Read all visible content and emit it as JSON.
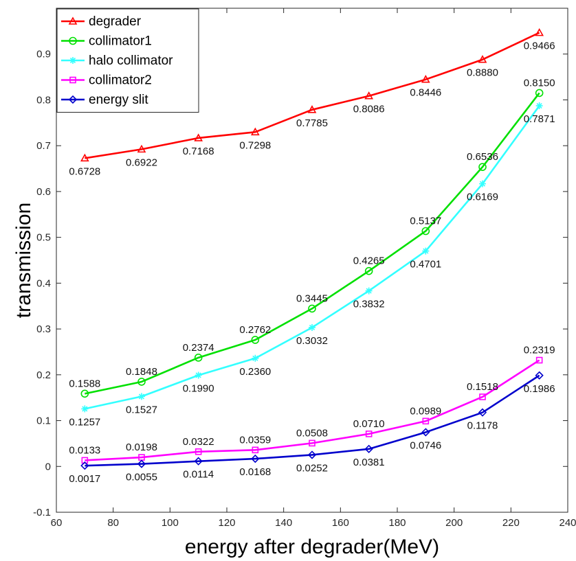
{
  "chart_data": {
    "type": "line",
    "xlabel": "energy after degrader(MeV)",
    "ylabel": "transmission",
    "xlim": [
      60,
      240
    ],
    "ylim": [
      -0.1,
      1.0
    ],
    "xticks": [
      60,
      80,
      100,
      120,
      140,
      160,
      180,
      200,
      220,
      240
    ],
    "yticks": [
      -0.1,
      0,
      0.1,
      0.2,
      0.3,
      0.4,
      0.5,
      0.6,
      0.7,
      0.8,
      0.9
    ],
    "ytick_labels": [
      "-0.1",
      "0",
      "0.1",
      "0.2",
      "0.3",
      "0.4",
      "0.5",
      "0.6",
      "0.7",
      "0.8",
      "0.9"
    ],
    "grid": false,
    "legend_position": "top-left",
    "x": [
      70,
      90,
      110,
      130,
      150,
      170,
      190,
      210,
      230
    ],
    "series": [
      {
        "name": "degrader",
        "color": "#ff0000",
        "marker": "triangle",
        "values": [
          0.6728,
          0.6922,
          0.7168,
          0.7298,
          0.7785,
          0.8086,
          0.8446,
          0.888,
          0.9466
        ],
        "labels": [
          "0.6728",
          "0.6922",
          "0.7168",
          "0.7298",
          "0.7785",
          "0.8086",
          "0.8446",
          "0.8880",
          "0.9466"
        ],
        "label_pos": [
          "below",
          "below",
          "below",
          "below",
          "below",
          "below",
          "below",
          "below",
          "below"
        ]
      },
      {
        "name": "collimator1",
        "color": "#00e000",
        "marker": "circle",
        "values": [
          0.1588,
          0.1848,
          0.2374,
          0.2762,
          0.3445,
          0.4265,
          0.5137,
          0.6536,
          0.815
        ],
        "labels": [
          "0.1588",
          "0.1848",
          "0.2374",
          "0.2762",
          "0.3445",
          "0.4265",
          "0.5137",
          "0.6536",
          "0.8150"
        ],
        "label_pos": [
          "above",
          "above",
          "above",
          "above",
          "above",
          "above",
          "above",
          "above",
          "above"
        ]
      },
      {
        "name": "halo collimator",
        "color": "#33ffff",
        "marker": "asterisk",
        "values": [
          0.1257,
          0.1527,
          0.199,
          0.236,
          0.3032,
          0.3832,
          0.4701,
          0.6169,
          0.7871
        ],
        "labels": [
          "0.1257",
          "0.1527",
          "0.1990",
          "0.2360",
          "0.3032",
          "0.3832",
          "0.4701",
          "0.6169",
          "0.7871"
        ],
        "label_pos": [
          "below",
          "below",
          "below",
          "below",
          "below",
          "below",
          "below",
          "below",
          "below"
        ]
      },
      {
        "name": "collimator2",
        "color": "#ff00ff",
        "marker": "square",
        "values": [
          0.0133,
          0.0198,
          0.0322,
          0.0359,
          0.0508,
          0.071,
          0.0989,
          0.1518,
          0.2319
        ],
        "labels": [
          "0.0133",
          "0.0198",
          "0.0322",
          "0.0359",
          "0.0508",
          "0.0710",
          "0.0989",
          "0.1518",
          "0.2319"
        ],
        "label_pos": [
          "above",
          "above",
          "above",
          "above",
          "above",
          "above",
          "above",
          "above",
          "above"
        ]
      },
      {
        "name": "energy slit",
        "color": "#0000cc",
        "marker": "diamond",
        "values": [
          0.0017,
          0.0055,
          0.0114,
          0.0168,
          0.0252,
          0.0381,
          0.0746,
          0.1178,
          0.1986
        ],
        "labels": [
          "0.0017",
          "0.0055",
          "0.0114",
          "0.0168",
          "0.0252",
          "0.0381",
          "0.0746",
          "0.1178",
          "0.1986"
        ],
        "label_pos": [
          "below",
          "below",
          "below",
          "below",
          "below",
          "below",
          "below",
          "below",
          "below"
        ]
      }
    ]
  }
}
